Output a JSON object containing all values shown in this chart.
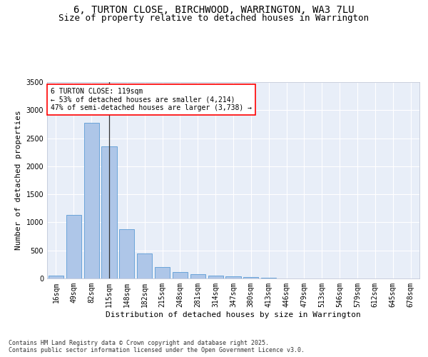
{
  "title_line1": "6, TURTON CLOSE, BIRCHWOOD, WARRINGTON, WA3 7LU",
  "title_line2": "Size of property relative to detached houses in Warrington",
  "xlabel": "Distribution of detached houses by size in Warrington",
  "ylabel": "Number of detached properties",
  "categories": [
    "16sqm",
    "49sqm",
    "82sqm",
    "115sqm",
    "148sqm",
    "182sqm",
    "215sqm",
    "248sqm",
    "281sqm",
    "314sqm",
    "347sqm",
    "380sqm",
    "413sqm",
    "446sqm",
    "479sqm",
    "513sqm",
    "546sqm",
    "579sqm",
    "612sqm",
    "645sqm",
    "678sqm"
  ],
  "values": [
    50,
    1130,
    2780,
    2350,
    880,
    440,
    200,
    110,
    80,
    55,
    35,
    20,
    10,
    5,
    3,
    2,
    1,
    1,
    0,
    0,
    0
  ],
  "bar_color": "#aec6e8",
  "bar_edge_color": "#5b9bd5",
  "background_color": "#e8eef8",
  "grid_color": "#ffffff",
  "annotation_text": "6 TURTON CLOSE: 119sqm\n← 53% of detached houses are smaller (4,214)\n47% of semi-detached houses are larger (3,738) →",
  "vline_bar_index": 3,
  "ylim": [
    0,
    3500
  ],
  "yticks": [
    0,
    500,
    1000,
    1500,
    2000,
    2500,
    3000,
    3500
  ],
  "footnote": "Contains HM Land Registry data © Crown copyright and database right 2025.\nContains public sector information licensed under the Open Government Licence v3.0.",
  "title_fontsize": 10,
  "subtitle_fontsize": 9,
  "axis_label_fontsize": 8,
  "tick_fontsize": 7,
  "annotation_fontsize": 7,
  "footnote_fontsize": 6
}
